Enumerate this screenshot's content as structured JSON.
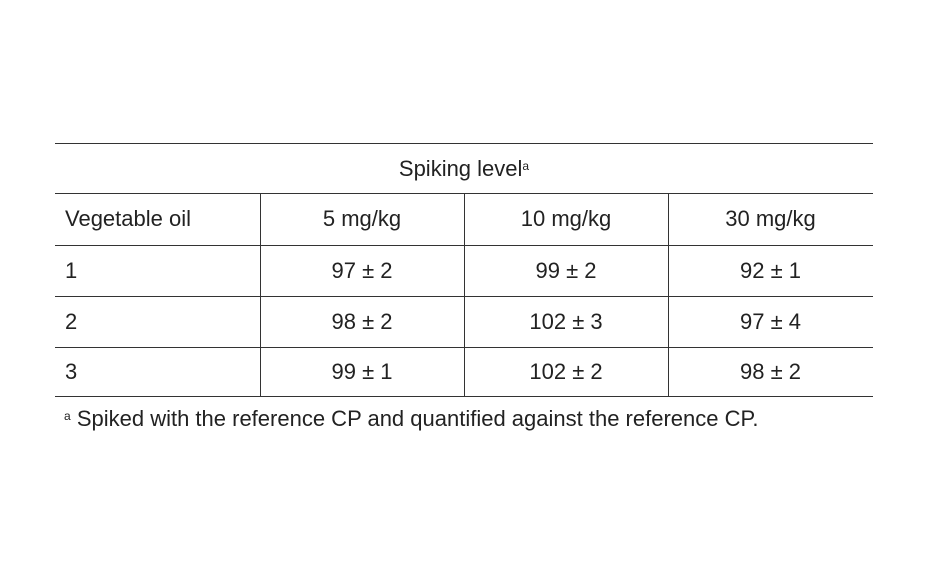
{
  "table": {
    "spanner": "Spiking level",
    "spanner_note": "a",
    "columns": [
      "Vegetable oil",
      "5 mg/kg",
      "10 mg/kg",
      "30 mg/kg"
    ],
    "rows": [
      [
        "1",
        "97 ± 2",
        "99 ± 2",
        "92 ± 1"
      ],
      [
        "2",
        "98 ± 2",
        "102 ± 3",
        "97 ± 4"
      ],
      [
        "3",
        "99 ± 1",
        "102 ± 2",
        "98 ± 2"
      ]
    ]
  },
  "footnote": {
    "marker": "a",
    "text": "Spiked with the reference CP and quantified against the reference CP."
  }
}
